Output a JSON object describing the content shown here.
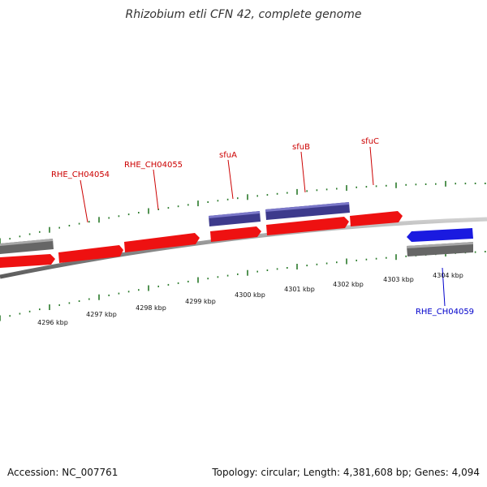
{
  "title": "Rhizobium etli CFN 42, complete genome",
  "footer": {
    "accession": "Accession: NC_007761",
    "summary": "Topology: circular; Length: 4,381,608 bp; Genes: 4,094"
  },
  "colors": {
    "forward_gene": "#ee1111",
    "forward_cds": "#3d3a8c",
    "reverse_gene": "#1a1ae0",
    "reverse_cds": "#666666",
    "tick": "#2a7a2a",
    "forward_label": "#cc0000",
    "reverse_label": "#0000cc"
  },
  "scale_labels": [
    "4296 kbp",
    "4297 kbp",
    "4298 kbp",
    "4299 kbp",
    "4300 kbp",
    "4301 kbp",
    "4302 kbp",
    "4303 kbp",
    "4304 kbp"
  ],
  "gene_labels": [
    {
      "text": "RHE_CH04054",
      "strand": "forward"
    },
    {
      "text": "RHE_CH04055",
      "strand": "forward"
    },
    {
      "text": "sfuA",
      "strand": "forward"
    },
    {
      "text": "sfuB",
      "strand": "forward"
    },
    {
      "text": "sfuC",
      "strand": "forward"
    },
    {
      "text": "RHE_CH04059",
      "strand": "reverse"
    }
  ]
}
